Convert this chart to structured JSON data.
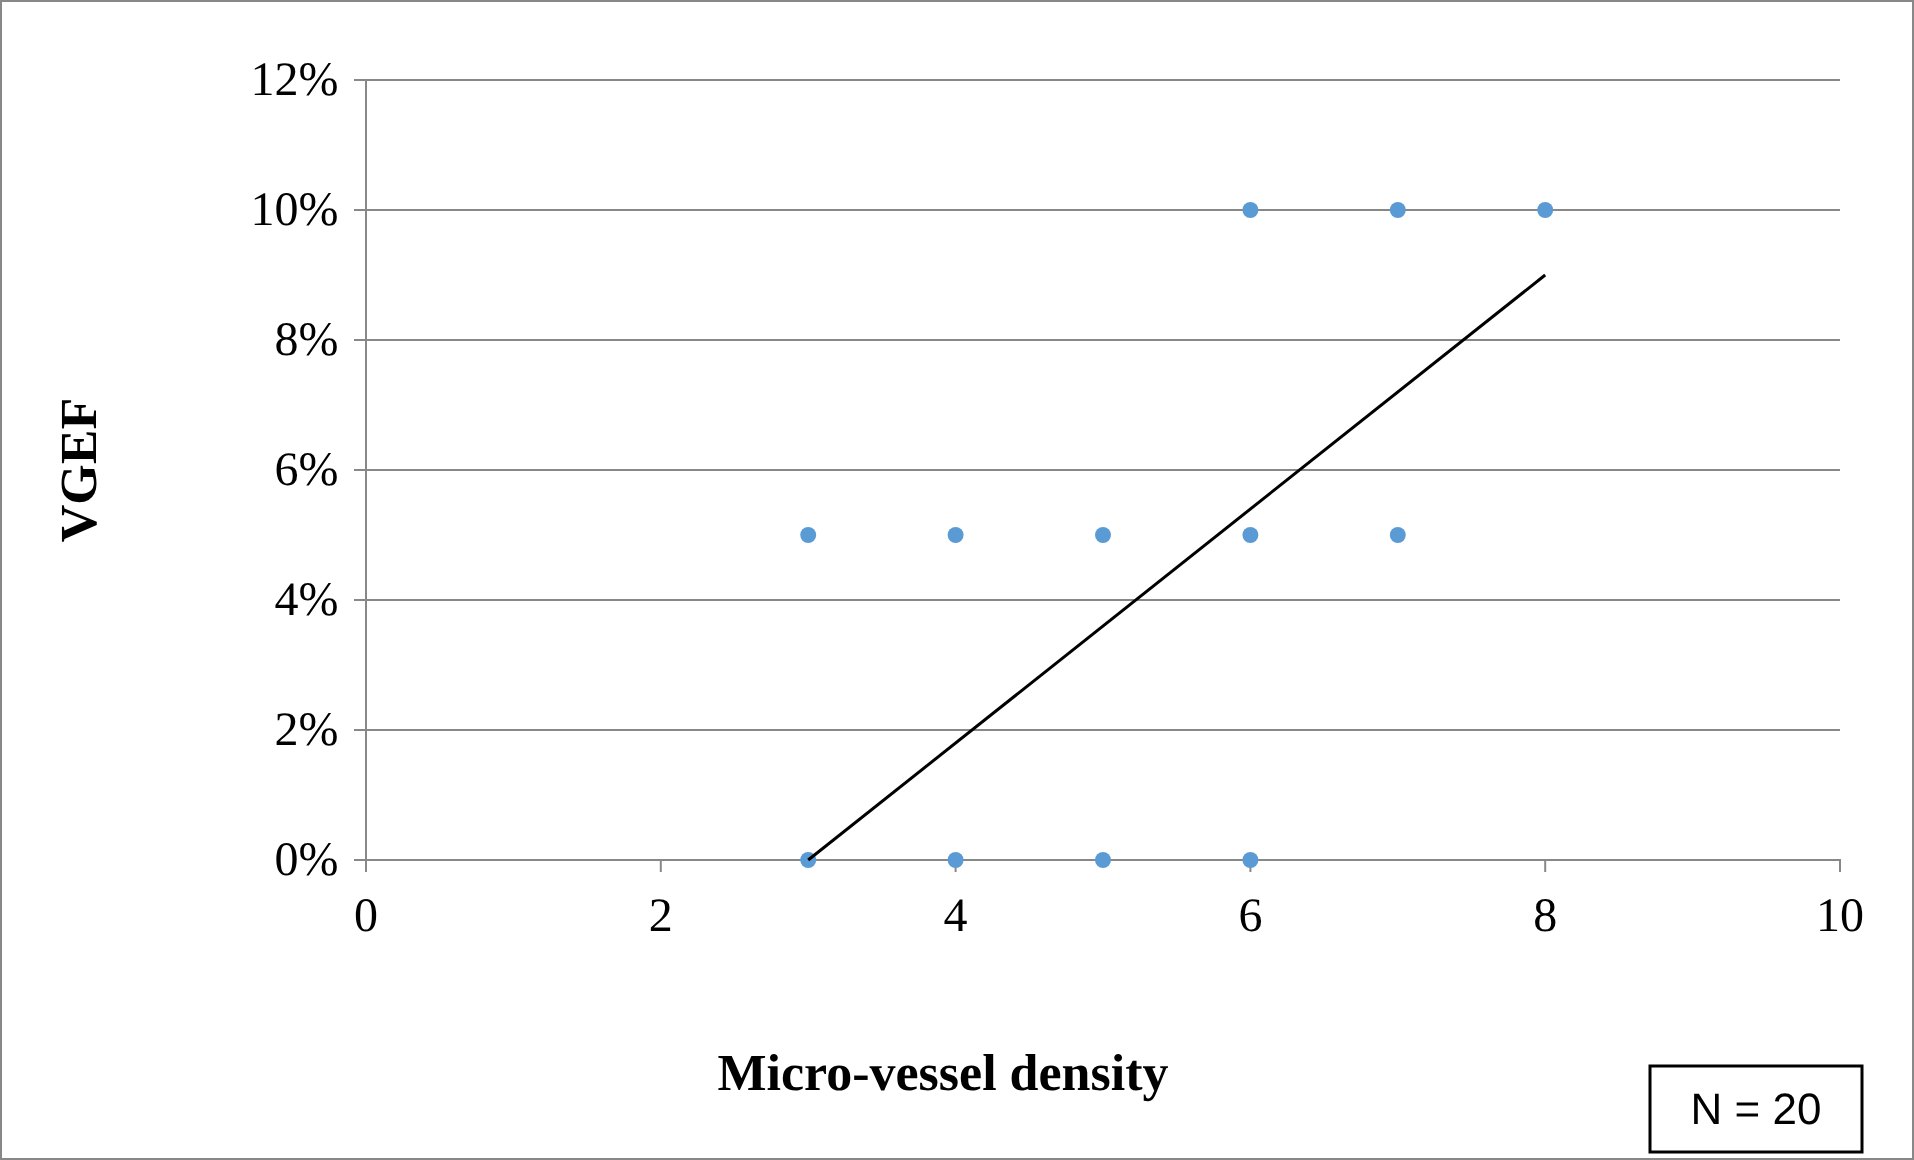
{
  "chart_data": {
    "type": "scatter",
    "xlabel": "Micro-vessel density",
    "ylabel": "VGEF",
    "annotations": [
      "N = 20"
    ],
    "xlim": [
      0,
      10
    ],
    "xticks": [
      0,
      2,
      4,
      6,
      8,
      10
    ],
    "ylim": [
      0,
      12
    ],
    "yticks": [
      {
        "value": 0,
        "label": "0%"
      },
      {
        "value": 2,
        "label": "2%"
      },
      {
        "value": 4,
        "label": "4%"
      },
      {
        "value": 6,
        "label": "6%"
      },
      {
        "value": 8,
        "label": "8%"
      },
      {
        "value": 10,
        "label": "10%"
      },
      {
        "value": 12,
        "label": "12%"
      }
    ],
    "grid": "y",
    "series": [
      {
        "marker": "circle",
        "color": "#5b9bd5",
        "x": [
          3,
          4,
          5,
          6,
          7,
          6,
          7,
          8,
          3,
          4,
          5,
          6
        ],
        "values": [
          5,
          5,
          5,
          5,
          5,
          10,
          10,
          10,
          0,
          0,
          0,
          0
        ]
      },
      {
        "type": "line",
        "color": "#000000",
        "line_style": "solid",
        "x": [
          3,
          8
        ],
        "values": [
          0,
          9
        ]
      }
    ]
  }
}
